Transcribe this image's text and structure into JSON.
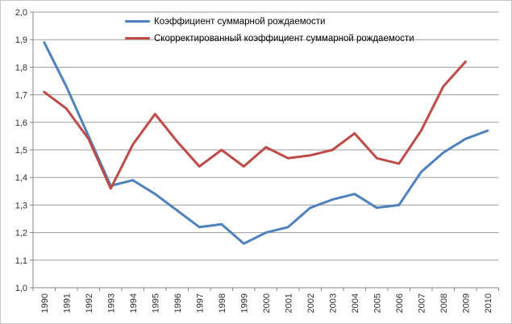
{
  "chart_data": {
    "type": "line",
    "title": "",
    "xlabel": "",
    "ylabel": "",
    "categories": [
      "1990",
      "1991",
      "1992",
      "1993",
      "1994",
      "1995",
      "1996",
      "1997",
      "1998",
      "1999",
      "2000",
      "2001",
      "2002",
      "2003",
      "2004",
      "2005",
      "2006",
      "2007",
      "2008",
      "2009",
      "2010"
    ],
    "series": [
      {
        "name": "Коэффициент суммарной рождаемости",
        "color": "#4F81BD",
        "values": [
          1.89,
          1.73,
          1.55,
          1.37,
          1.39,
          1.34,
          1.28,
          1.22,
          1.23,
          1.16,
          1.2,
          1.22,
          1.29,
          1.32,
          1.34,
          1.29,
          1.3,
          1.42,
          1.49,
          1.54,
          1.57
        ]
      },
      {
        "name": "Скорректированный коэффициент суммарной рождаемости",
        "color": "#BE4B48",
        "values": [
          1.71,
          1.65,
          1.54,
          1.36,
          1.52,
          1.63,
          1.53,
          1.44,
          1.5,
          1.44,
          1.51,
          1.47,
          1.48,
          1.5,
          1.56,
          1.47,
          1.45,
          1.57,
          1.73,
          1.82,
          null
        ]
      }
    ],
    "ylim": [
      1.0,
      2.0
    ],
    "y_step": 0.1,
    "y_tick_labels": [
      "1,0",
      "1,1",
      "1,2",
      "1,3",
      "1,4",
      "1,5",
      "1,6",
      "1,7",
      "1,8",
      "1,9",
      "2,0"
    ],
    "decimal_separator": ",",
    "grid": true,
    "legend_position": "top"
  },
  "style": {
    "gridline_color": "#9d9d9d",
    "axis_color": "#868686",
    "tick_label_color": "#2e2e2e",
    "background": "#ffffff",
    "line_width": 3
  }
}
